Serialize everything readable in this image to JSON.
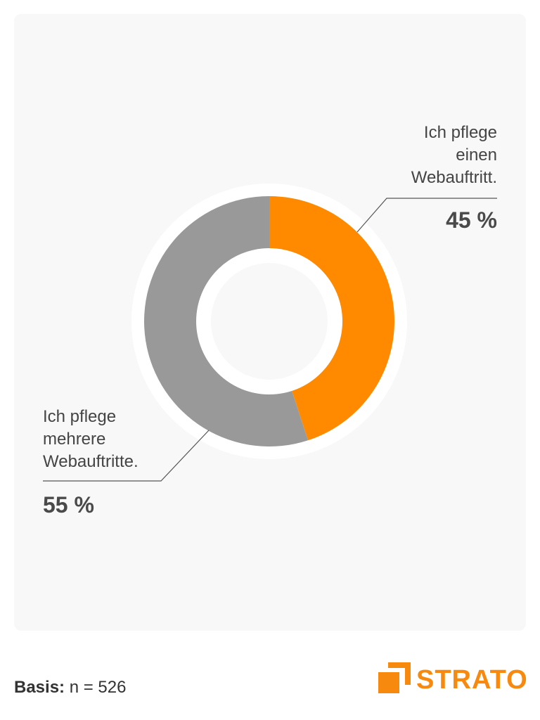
{
  "chart_data": {
    "type": "pie",
    "variant": "donut",
    "slices": [
      {
        "label": "Ich pflege einen Webauftritt.",
        "label_lines": [
          "Ich pflege",
          "einen",
          "Webauftritt."
        ],
        "value": 45,
        "value_label": "45 %",
        "color": "#ff8a00"
      },
      {
        "label": "Ich pflege mehrere Webauftritte.",
        "label_lines": [
          "Ich pflege",
          "mehrere",
          "Webauftritte."
        ],
        "value": 55,
        "value_label": "55 %",
        "color": "#999999"
      }
    ],
    "start": "top",
    "direction": "clockwise"
  },
  "footer": {
    "basis_label": "Basis:",
    "basis_value": "n = 526"
  },
  "brand": {
    "name": "STRATO",
    "color": "#f78a0e",
    "icon": "strato-logo-icon"
  }
}
